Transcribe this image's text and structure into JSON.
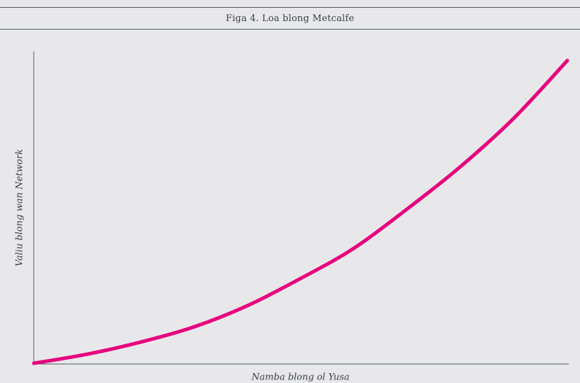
{
  "chart_data": {
    "type": "line",
    "title": "Figa 4. Loa blong Metcalfe",
    "xlabel": "Namba blong ol Yusa",
    "ylabel": "Valiu blong wan Network",
    "x": [
      0,
      0.1,
      0.2,
      0.3,
      0.4,
      0.5,
      0.6,
      0.7,
      0.8,
      0.9,
      1.0
    ],
    "series": [
      {
        "values": [
          0,
          0.03,
          0.07,
          0.12,
          0.19,
          0.28,
          0.38,
          0.51,
          0.65,
          0.81,
          1.0
        ],
        "color": "#e6007e"
      }
    ],
    "xlim": [
      0,
      1
    ],
    "ylim": [
      0,
      1
    ],
    "grid": false,
    "ticks": false,
    "legend": "none"
  }
}
